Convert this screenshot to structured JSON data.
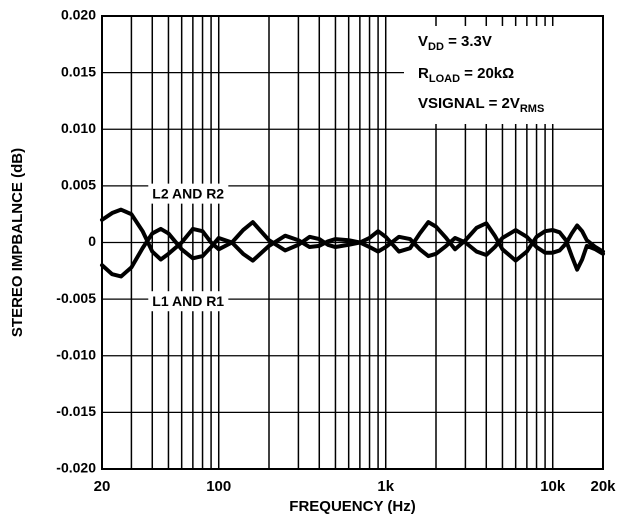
{
  "chart_data": {
    "type": "line",
    "xscale": "log",
    "xlim": [
      20,
      20000
    ],
    "ylim": [
      -0.02,
      0.02
    ],
    "xlabel": "FREQUENCY (Hz)",
    "ylabel": "STEREO IMPBALNCE (dB)",
    "x_tick_labels": [
      {
        "value": 20,
        "label": "20"
      },
      {
        "value": 100,
        "label": "100"
      },
      {
        "value": 1000,
        "label": "1k"
      },
      {
        "value": 10000,
        "label": "10k"
      },
      {
        "value": 20000,
        "label": "20k"
      }
    ],
    "y_tick_labels": [
      {
        "value": 0.02,
        "label": "0.020"
      },
      {
        "value": 0.015,
        "label": "0.015"
      },
      {
        "value": 0.01,
        "label": "0.010"
      },
      {
        "value": 0.005,
        "label": "0.005"
      },
      {
        "value": 0,
        "label": "0"
      },
      {
        "value": -0.005,
        "label": "-0.005"
      },
      {
        "value": -0.01,
        "label": "-0.010"
      },
      {
        "value": -0.015,
        "label": "-0.015"
      },
      {
        "value": -0.02,
        "label": "-0.020"
      }
    ],
    "grid": true,
    "annotations": {
      "vdd": {
        "main": "V",
        "sub": "DD",
        "rest": " = 3.3V"
      },
      "rload": {
        "main": "R",
        "sub": "LOAD",
        "rest": " = 20kΩ"
      },
      "vsignal": {
        "main": "VSIGNAL = 2V",
        "sub": "RMS",
        "rest": ""
      }
    },
    "series": [
      {
        "name": "L2 AND R2",
        "x": [
          20,
          23,
          26,
          30,
          35,
          40,
          45,
          50,
          60,
          70,
          80,
          90,
          100,
          120,
          140,
          160,
          200,
          250,
          300,
          350,
          400,
          450,
          500,
          600,
          700,
          800,
          900,
          1000,
          1200,
          1400,
          1600,
          1800,
          2000,
          2300,
          2600,
          3000,
          3500,
          4000,
          4500,
          5000,
          6000,
          7000,
          8000,
          9000,
          10000,
          11000,
          12000,
          13000,
          14000,
          15000,
          16000,
          18000,
          20000
        ],
        "y": [
          0.002,
          0.0026,
          0.0029,
          0.0025,
          0.001,
          -0.0008,
          -0.0015,
          -0.001,
          0,
          0.0012,
          0.001,
          0,
          -0.0006,
          0,
          0.0011,
          0.0018,
          0.0002,
          -0.0007,
          -0.0002,
          0.0005,
          0.0003,
          -0.0002,
          -0.0004,
          -0.0002,
          0,
          0.0004,
          0.001,
          0.0005,
          -0.0008,
          -0.0005,
          0.0008,
          0.0018,
          0.0014,
          0.0004,
          -0.0006,
          0.0002,
          0.0013,
          0.0017,
          0.0006,
          -0.0006,
          -0.0016,
          -0.0008,
          0.0005,
          0.001,
          0.0011,
          0.0009,
          0.0002,
          -0.0012,
          -0.0024,
          -0.0015,
          -0.0003,
          -0.0006,
          -0.001
        ]
      },
      {
        "name": "L1 AND R1",
        "x": [
          20,
          23,
          26,
          30,
          35,
          40,
          45,
          50,
          60,
          70,
          80,
          90,
          100,
          120,
          140,
          160,
          200,
          250,
          300,
          350,
          400,
          450,
          500,
          600,
          700,
          800,
          900,
          1000,
          1200,
          1400,
          1600,
          1800,
          2000,
          2300,
          2600,
          3000,
          3500,
          4000,
          4500,
          5000,
          6000,
          7000,
          8000,
          9000,
          10000,
          11000,
          12000,
          13000,
          14000,
          15000,
          16000,
          18000,
          20000
        ],
        "y": [
          -0.002,
          -0.0028,
          -0.003,
          -0.0022,
          -0.0005,
          0.0008,
          0.0012,
          0.0008,
          -0.0006,
          -0.0014,
          -0.0012,
          -0.0004,
          0.0004,
          0,
          -0.001,
          -0.0016,
          -0.0003,
          0.0006,
          0.0002,
          -0.0004,
          -0.0003,
          0.0001,
          0.0003,
          0.0002,
          0,
          -0.0004,
          -0.0008,
          -0.0004,
          0.0005,
          0.0003,
          -0.0006,
          -0.0012,
          -0.001,
          -0.0003,
          0.0004,
          0,
          -0.0008,
          -0.0011,
          -0.0004,
          0.0004,
          0.0011,
          0.0005,
          -0.0004,
          -0.0009,
          -0.0009,
          -0.0007,
          -0.0001,
          0.0008,
          0.0015,
          0.001,
          0.0002,
          -0.0004,
          -0.0008
        ]
      }
    ],
    "series_labels": [
      {
        "text": "L2 AND R2",
        "x": 40,
        "y": 0.0042
      },
      {
        "text": "L1 AND R1",
        "x": 40,
        "y": -0.0053
      }
    ]
  }
}
